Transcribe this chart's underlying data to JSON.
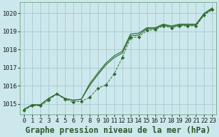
{
  "title": "Graphe pression niveau de la mer (hPa)",
  "background_color": "#cce8ec",
  "grid_color": "#aaccd4",
  "line_color": "#2d6a2d",
  "marker_color": "#2d6a2d",
  "x_values": [
    0,
    1,
    2,
    3,
    4,
    5,
    6,
    7,
    8,
    9,
    10,
    11,
    12,
    13,
    14,
    15,
    16,
    17,
    18,
    19,
    20,
    21,
    22,
    23
  ],
  "series_solid1": [
    1014.7,
    1014.95,
    1014.95,
    1015.3,
    1015.55,
    1015.3,
    1015.2,
    1015.25,
    1016.0,
    1016.6,
    1017.15,
    1017.55,
    1017.8,
    1018.75,
    1018.8,
    1019.15,
    1019.15,
    1019.35,
    1019.25,
    1019.35,
    1019.35,
    1019.35,
    1019.95,
    1020.25
  ],
  "series_solid2": [
    1014.7,
    1014.95,
    1014.95,
    1015.3,
    1015.55,
    1015.3,
    1015.2,
    1015.25,
    1016.1,
    1016.7,
    1017.25,
    1017.65,
    1017.9,
    1018.85,
    1018.9,
    1019.2,
    1019.2,
    1019.4,
    1019.3,
    1019.4,
    1019.4,
    1019.4,
    1020.0,
    1020.3
  ],
  "series_dotted": [
    1014.65,
    1014.9,
    1014.9,
    1015.2,
    1015.55,
    1015.25,
    1015.1,
    1015.15,
    1015.35,
    1015.85,
    1016.05,
    1016.65,
    1017.55,
    1018.65,
    1018.7,
    1019.05,
    1019.1,
    1019.3,
    1019.2,
    1019.3,
    1019.3,
    1019.3,
    1019.9,
    1020.2
  ],
  "ylim": [
    1014.4,
    1020.6
  ],
  "yticks": [
    1015,
    1016,
    1017,
    1018,
    1019,
    1020
  ],
  "xlim": [
    -0.5,
    23.5
  ],
  "xticks": [
    0,
    1,
    2,
    3,
    4,
    5,
    6,
    7,
    8,
    9,
    10,
    11,
    12,
    13,
    14,
    15,
    16,
    17,
    18,
    19,
    20,
    21,
    22,
    23
  ],
  "title_fontsize": 8.5,
  "tick_fontsize": 6.5
}
